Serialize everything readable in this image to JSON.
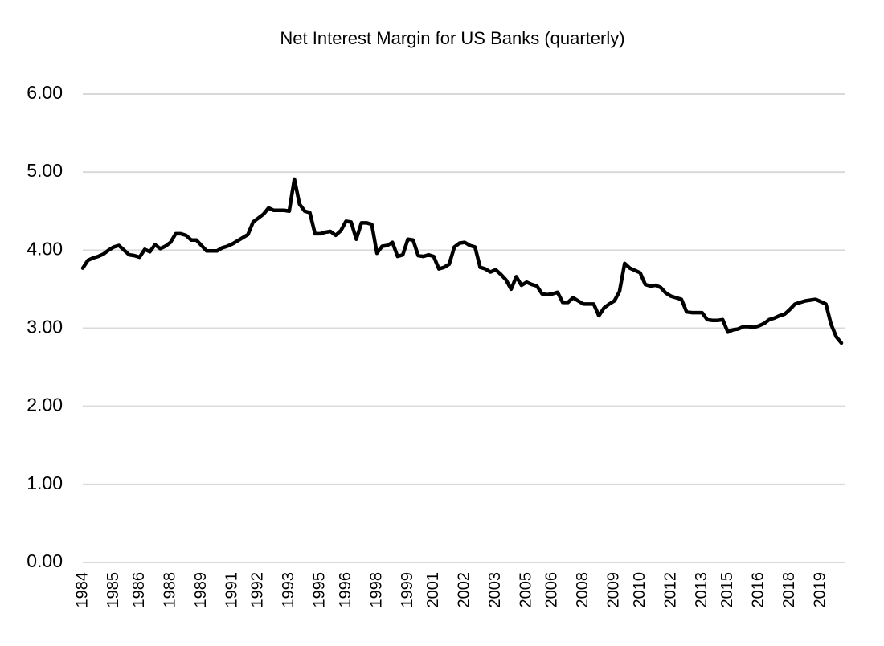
{
  "chart_data": {
    "type": "line",
    "title": "Net Interest Margin for US Banks (quarterly)",
    "categories": [
      "1984",
      null,
      null,
      null,
      null,
      null,
      "1985",
      null,
      null,
      null,
      null,
      "1986",
      null,
      null,
      null,
      null,
      null,
      "1988",
      null,
      null,
      null,
      null,
      null,
      "1989",
      null,
      null,
      null,
      null,
      null,
      "1991",
      null,
      null,
      null,
      null,
      "1992",
      null,
      null,
      null,
      null,
      null,
      "1993",
      null,
      null,
      null,
      null,
      null,
      "1995",
      null,
      null,
      null,
      null,
      "1996",
      null,
      null,
      null,
      null,
      null,
      "1998",
      null,
      null,
      null,
      null,
      null,
      "1999",
      null,
      null,
      null,
      null,
      "2001",
      null,
      null,
      null,
      null,
      null,
      "2002",
      null,
      null,
      null,
      null,
      null,
      "2003",
      null,
      null,
      null,
      null,
      null,
      "2005",
      null,
      null,
      null,
      null,
      "2006",
      null,
      null,
      null,
      null,
      null,
      "2008",
      null,
      null,
      null,
      null,
      null,
      "2009",
      null,
      null,
      null,
      null,
      "2010",
      null,
      null,
      null,
      null,
      null,
      "2012",
      null,
      null,
      null,
      null,
      null,
      "2013",
      null,
      null,
      null,
      null,
      "2015",
      null,
      null,
      null,
      null,
      null,
      "2016",
      null,
      null,
      null,
      null,
      null,
      "2018",
      null,
      null,
      null,
      null,
      null,
      "2019",
      null,
      null,
      null,
      null
    ],
    "series": [
      {
        "name": "Net Interest Margin",
        "color": "#000000",
        "values": [
          3.77,
          3.87,
          3.9,
          3.92,
          3.95,
          4.0,
          4.04,
          4.06,
          4.0,
          3.94,
          3.93,
          3.91,
          4.01,
          3.98,
          4.07,
          4.02,
          4.05,
          4.1,
          4.21,
          4.21,
          4.19,
          4.13,
          4.13,
          4.06,
          3.99,
          3.99,
          3.99,
          4.03,
          4.05,
          4.08,
          4.12,
          4.16,
          4.2,
          4.36,
          4.41,
          4.46,
          4.54,
          4.51,
          4.51,
          4.51,
          4.5,
          4.91,
          4.59,
          4.5,
          4.48,
          4.21,
          4.21,
          4.23,
          4.24,
          4.19,
          4.25,
          4.37,
          4.36,
          4.14,
          4.35,
          4.35,
          4.33,
          3.96,
          4.05,
          4.06,
          4.1,
          3.92,
          3.94,
          4.14,
          4.13,
          3.93,
          3.92,
          3.94,
          3.92,
          3.76,
          3.78,
          3.82,
          4.04,
          4.09,
          4.1,
          4.06,
          4.04,
          3.78,
          3.76,
          3.72,
          3.75,
          3.69,
          3.62,
          3.5,
          3.66,
          3.55,
          3.59,
          3.56,
          3.54,
          3.44,
          3.43,
          3.44,
          3.46,
          3.33,
          3.33,
          3.39,
          3.35,
          3.31,
          3.31,
          3.31,
          3.16,
          3.26,
          3.31,
          3.35,
          3.47,
          3.83,
          3.77,
          3.74,
          3.71,
          3.56,
          3.54,
          3.55,
          3.52,
          3.45,
          3.41,
          3.39,
          3.37,
          3.21,
          3.2,
          3.2,
          3.2,
          3.11,
          3.1,
          3.1,
          3.11,
          2.95,
          2.98,
          2.99,
          3.02,
          3.02,
          3.01,
          3.03,
          3.06,
          3.11,
          3.13,
          3.16,
          3.18,
          3.24,
          3.31,
          3.33,
          3.35,
          3.36,
          3.37,
          3.34,
          3.31,
          3.05,
          2.89,
          2.81
        ]
      }
    ],
    "ylim": [
      0,
      6
    ],
    "yticks": [
      {
        "value": 0,
        "label": "0.00"
      },
      {
        "value": 1,
        "label": "1.00"
      },
      {
        "value": 2,
        "label": "2.00"
      },
      {
        "value": 3,
        "label": "3.00"
      },
      {
        "value": 4,
        "label": "4.00"
      },
      {
        "value": 5,
        "label": "5.00"
      },
      {
        "value": 6,
        "label": "6.00"
      }
    ],
    "grid": true
  }
}
